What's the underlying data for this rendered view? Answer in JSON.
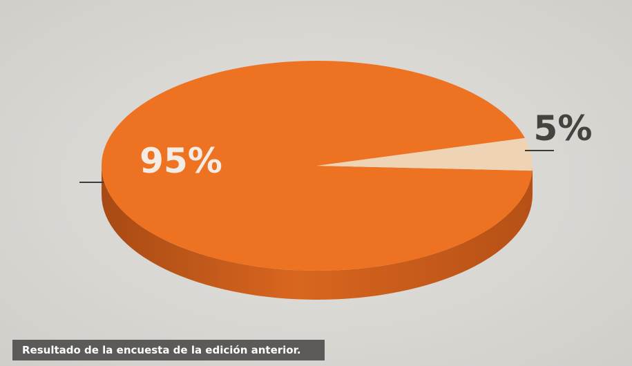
{
  "chart_data": {
    "type": "pie",
    "style": "3d",
    "slices": [
      {
        "label": "95%",
        "value": 95,
        "color": "#ed7322"
      },
      {
        "label": "5%",
        "value": 5,
        "color": "#eed3b4"
      }
    ],
    "legend": "none"
  },
  "caption": "Resultado de la encuesta de la edición anterior."
}
